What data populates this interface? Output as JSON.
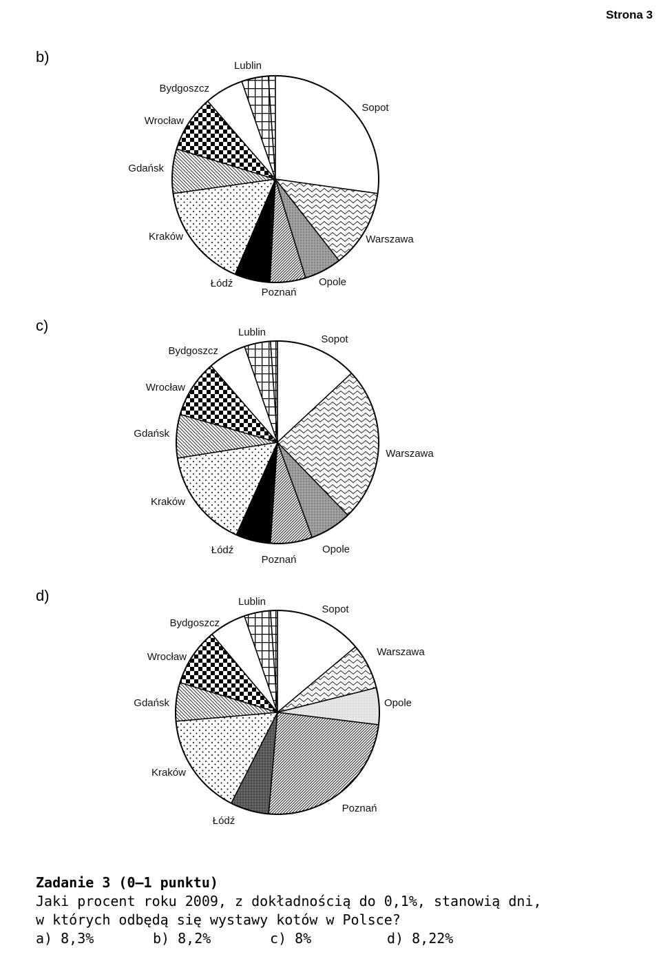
{
  "header": {
    "page_label": "Strona 3"
  },
  "charts": [
    {
      "option": "b)",
      "slices": [
        {
          "name": "Lublin",
          "pattern": "grid",
          "start": -4,
          "end": 0
        },
        {
          "name": "Sopot",
          "pattern": "white",
          "start": 0,
          "end": 98
        },
        {
          "name": "Warszawa",
          "pattern": "wavy",
          "start": 98,
          "end": 142
        },
        {
          "name": "Opole",
          "pattern": "gray",
          "start": 142,
          "end": 163
        },
        {
          "name": "Poznań",
          "pattern": "hatch",
          "start": 163,
          "end": 183
        },
        {
          "name": "Łódź",
          "pattern": "black",
          "start": 183,
          "end": 203
        },
        {
          "name": "Kraków",
          "pattern": "dots",
          "start": 203,
          "end": 262
        },
        {
          "name": "Gdańsk",
          "pattern": "stripes",
          "start": 262,
          "end": 287
        },
        {
          "name": "Wrocław",
          "pattern": "checker",
          "start": 287,
          "end": 319
        },
        {
          "name": "Bydgoszcz",
          "pattern": "white",
          "start": 319,
          "end": 341
        },
        {
          "name": "Lublin",
          "pattern": "grid",
          "start": 341,
          "end": 356
        }
      ]
    },
    {
      "option": "c)",
      "slices": [
        {
          "name": "Lublin",
          "pattern": "grid",
          "start": -4,
          "end": 0
        },
        {
          "name": "Sopot",
          "pattern": "white",
          "start": 0,
          "end": 47
        },
        {
          "name": "Warszawa",
          "pattern": "wavy",
          "start": 47,
          "end": 136
        },
        {
          "name": "Opole",
          "pattern": "gray",
          "start": 136,
          "end": 160
        },
        {
          "name": "Poznań",
          "pattern": "hatch",
          "start": 160,
          "end": 184
        },
        {
          "name": "Łódź",
          "pattern": "black",
          "start": 184,
          "end": 204
        },
        {
          "name": "Kraków",
          "pattern": "dots",
          "start": 204,
          "end": 261
        },
        {
          "name": "Gdańsk",
          "pattern": "stripes",
          "start": 261,
          "end": 286
        },
        {
          "name": "Wrocław",
          "pattern": "checker",
          "start": 286,
          "end": 319
        },
        {
          "name": "Bydgoszcz",
          "pattern": "white",
          "start": 319,
          "end": 341
        },
        {
          "name": "Lublin",
          "pattern": "grid",
          "start": 341,
          "end": 356
        }
      ]
    },
    {
      "option": "d)",
      "slices": [
        {
          "name": "Lublin",
          "pattern": "grid",
          "start": -4,
          "end": 0
        },
        {
          "name": "Sopot",
          "pattern": "white",
          "start": 0,
          "end": 50
        },
        {
          "name": "Warszawa",
          "pattern": "wavy",
          "start": 50,
          "end": 76
        },
        {
          "name": "Opole",
          "pattern": "light",
          "start": 76,
          "end": 97
        },
        {
          "name": "Poznań",
          "pattern": "hatch",
          "start": 97,
          "end": 185
        },
        {
          "name": "Łódź",
          "pattern": "darkgray",
          "start": 185,
          "end": 207
        },
        {
          "name": "Kraków",
          "pattern": "dots",
          "start": 207,
          "end": 265
        },
        {
          "name": "Gdańsk",
          "pattern": "stripes",
          "start": 265,
          "end": 287
        },
        {
          "name": "Wrocław",
          "pattern": "checker",
          "start": 287,
          "end": 320
        },
        {
          "name": "Bydgoszcz",
          "pattern": "white",
          "start": 320,
          "end": 341
        },
        {
          "name": "Lublin",
          "pattern": "grid",
          "start": 341,
          "end": 356
        }
      ]
    }
  ],
  "task": {
    "title": "Zadanie 3 (0–1 punktu)",
    "line1": "Jaki procent roku 2009, z dokładnością do 0,1%, stanowią dni,",
    "line2": "w których odbędą się wystawy kotów w Polsce?",
    "answers": [
      "a) 8,3%",
      "b) 8,2%",
      "c) 8%",
      "d) 8,22%"
    ]
  }
}
